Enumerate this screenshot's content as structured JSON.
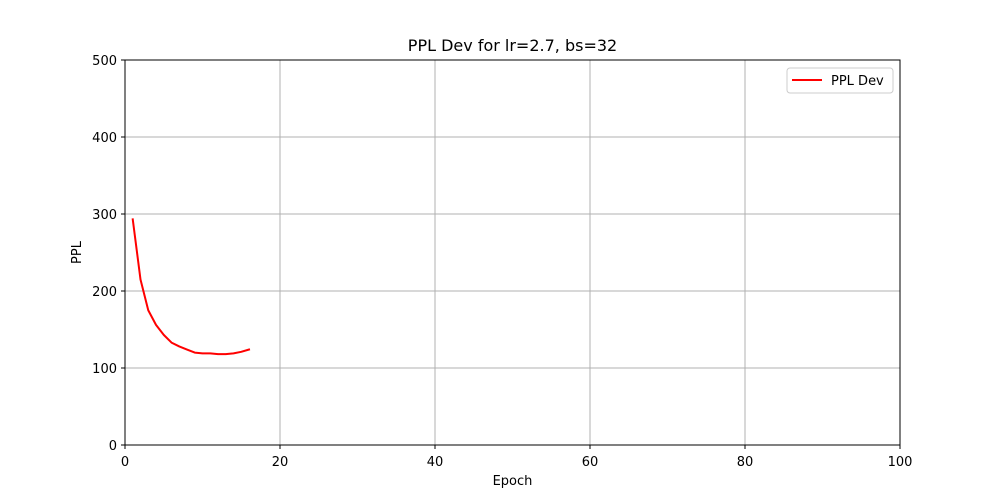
{
  "chart_data": {
    "type": "line",
    "title": "PPL Dev for lr=2.7, bs=32",
    "xlabel": "Epoch",
    "ylabel": "PPL",
    "xlim": [
      0,
      100
    ],
    "ylim": [
      0,
      500
    ],
    "xticks": [
      0,
      20,
      40,
      60,
      80,
      100
    ],
    "yticks": [
      0,
      100,
      200,
      300,
      400,
      500
    ],
    "grid": true,
    "legend_position": "top-right",
    "series": [
      {
        "name": "PPL Dev",
        "color": "#ff0000",
        "x": [
          1,
          2,
          3,
          4,
          5,
          6,
          7,
          8,
          9,
          10,
          11,
          12,
          13,
          14,
          15,
          16
        ],
        "y": [
          293,
          215,
          175,
          156,
          143,
          133,
          128,
          124,
          120,
          119,
          119,
          118,
          118,
          119,
          121,
          124
        ]
      }
    ]
  }
}
